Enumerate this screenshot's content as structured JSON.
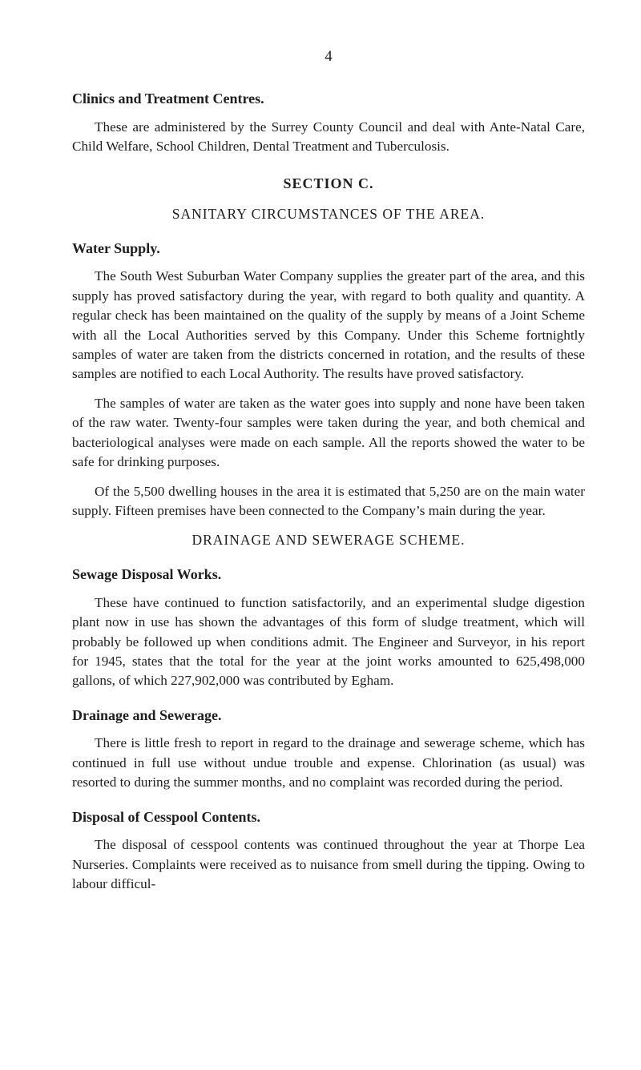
{
  "page_number": "4",
  "sections": {
    "clinics": {
      "heading": "Clinics and Treatment Centres.",
      "p1": "These are administered by the Surrey County Council and deal with Ante-Natal Care, Child Welfare, School Children, Dental Treatment and Tuberculosis."
    },
    "sectionC": {
      "heading": "SECTION C.",
      "subheading": "SANITARY CIRCUMSTANCES OF THE AREA."
    },
    "water": {
      "heading": "Water Supply.",
      "p1": "The South West Suburban Water Company supplies the greater part of the area, and this supply has proved satisfactory during the year, with regard to both quality and quantity. A regular check has been maintained on the quality of the supply by means of a Joint Scheme with all the Local Authorities served by this Company. Under this Scheme fortnightly samples of water are taken from the districts concerned in rotation, and the results of these samples are notified to each Local Authority. The results have proved satisfactory.",
      "p2": "The samples of water are taken as the water goes into supply and none have been taken of the raw water. Twenty-four samples were taken during the year, and both chemical and bacteriological analyses were made on each sample. All the reports showed the water to be safe for drinking purposes.",
      "p3": "Of the 5,500 dwelling houses in the area it is estimated that 5,250 are on the main water supply. Fifteen premises have been connected to the Company’s main during the year."
    },
    "drainageScheme": {
      "heading": "DRAINAGE AND SEWERAGE SCHEME."
    },
    "sewage": {
      "heading": "Sewage Disposal Works.",
      "p1": "These have continued to function satisfactorily, and an experimental sludge digestion plant now in use has shown the advantages of this form of sludge treatment, which will probably be followed up when conditions admit. The Engineer and Surveyor, in his report for 1945, states that the total for the year at the joint works amounted to 625,498,000 gallons, of which 227,902,000 was contributed by Egham."
    },
    "drainage": {
      "heading": "Drainage and Sewerage.",
      "p1": "There is little fresh to report in regard to the drainage and sewerage scheme, which has continued in full use without undue trouble and expense. Chlorination (as usual) was resorted to during the summer months, and no complaint was recorded during the period."
    },
    "cesspool": {
      "heading": "Disposal of Cesspool Contents.",
      "p1": "The disposal of cesspool contents was continued throughout the year at Thorpe Lea Nurseries. Complaints were received as to nuisance from smell during the tipping. Owing to labour difficul-"
    }
  }
}
